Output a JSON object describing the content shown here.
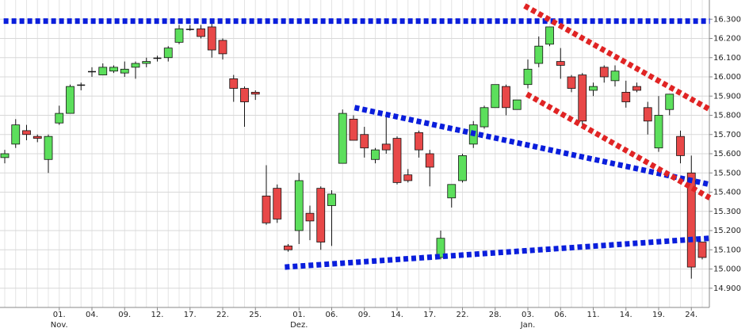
{
  "chart_data": {
    "type": "candlestick",
    "categories": [
      null,
      null,
      null,
      null,
      null,
      "01.",
      null,
      null,
      "04.",
      null,
      null,
      "09.",
      null,
      null,
      "12.",
      null,
      null,
      "17.",
      null,
      null,
      "22.",
      null,
      null,
      "25.",
      null,
      null,
      null,
      "01.",
      null,
      null,
      "06.",
      null,
      null,
      "09.",
      null,
      null,
      "14.",
      null,
      null,
      "17.",
      null,
      null,
      "22.",
      null,
      null,
      "28.",
      null,
      null,
      "03.",
      null,
      null,
      "06.",
      null,
      null,
      "11.",
      null,
      null,
      "14.",
      null,
      null,
      "19.",
      null,
      null,
      "24.",
      null
    ],
    "months": [
      null,
      null,
      null,
      null,
      null,
      "Nov.",
      null,
      null,
      null,
      null,
      null,
      null,
      null,
      null,
      null,
      null,
      null,
      null,
      null,
      null,
      null,
      null,
      null,
      null,
      null,
      null,
      null,
      "Dez.",
      null,
      null,
      null,
      null,
      null,
      null,
      null,
      null,
      null,
      null,
      null,
      null,
      null,
      null,
      null,
      null,
      null,
      null,
      null,
      null,
      "Jan.",
      null,
      null,
      null,
      null,
      null,
      null,
      null,
      null,
      null,
      null,
      null,
      null,
      null,
      null,
      null,
      null
    ],
    "open": [
      15.58,
      15.65,
      15.72,
      15.69,
      15.57,
      15.76,
      15.81,
      15.96,
      16.03,
      16.01,
      16.03,
      16.02,
      16.05,
      16.07,
      16.1,
      16.1,
      16.18,
      16.25,
      16.25,
      16.26,
      16.19,
      15.99,
      15.94,
      15.92,
      15.38,
      15.42,
      15.12,
      15.2,
      15.29,
      15.42,
      15.33,
      15.55,
      15.78,
      15.7,
      15.57,
      15.65,
      15.68,
      15.49,
      15.71,
      15.6,
      15.06,
      15.37,
      15.46,
      15.65,
      15.74,
      15.84,
      15.95,
      15.83,
      15.96,
      16.07,
      16.17,
      16.08,
      16.0,
      16.01,
      15.93,
      16.05,
      15.98,
      15.92,
      15.95,
      15.84,
      15.63,
      15.83,
      15.69,
      15.5,
      15.14
    ],
    "high": [
      15.62,
      15.78,
      15.75,
      15.7,
      15.7,
      15.85,
      15.96,
      15.97,
      16.05,
      16.07,
      16.06,
      16.08,
      16.08,
      16.1,
      16.11,
      16.16,
      16.27,
      16.27,
      16.27,
      16.28,
      16.2,
      16.01,
      15.95,
      15.93,
      15.54,
      15.44,
      15.13,
      15.5,
      15.33,
      15.43,
      15.41,
      15.83,
      15.8,
      15.74,
      15.63,
      15.79,
      15.69,
      15.52,
      15.72,
      15.62,
      15.2,
      15.44,
      15.6,
      15.77,
      15.85,
      15.96,
      15.96,
      15.88,
      16.09,
      16.21,
      16.26,
      16.15,
      16.01,
      16.02,
      15.97,
      16.06,
      16.06,
      15.98,
      15.97,
      15.87,
      15.9,
      15.91,
      15.72,
      15.59,
      15.14
    ],
    "low": [
      15.55,
      15.63,
      15.67,
      15.66,
      15.5,
      15.75,
      15.81,
      15.93,
      16.0,
      16.01,
      16.02,
      16.0,
      15.99,
      16.05,
      16.08,
      16.08,
      16.17,
      16.24,
      16.2,
      16.1,
      16.09,
      15.87,
      15.74,
      15.88,
      15.23,
      15.24,
      15.09,
      15.13,
      15.15,
      15.1,
      15.12,
      15.55,
      15.67,
      15.58,
      15.55,
      15.6,
      15.44,
      15.45,
      15.58,
      15.43,
      15.05,
      15.32,
      15.45,
      15.63,
      15.73,
      15.84,
      15.8,
      15.83,
      15.94,
      16.05,
      16.16,
      15.99,
      15.92,
      15.75,
      15.9,
      15.97,
      15.95,
      15.84,
      15.92,
      15.7,
      15.61,
      15.8,
      15.55,
      14.95,
      15.05
    ],
    "close": [
      15.6,
      15.75,
      15.7,
      15.68,
      15.69,
      15.81,
      15.95,
      15.96,
      16.03,
      16.05,
      16.05,
      16.04,
      16.07,
      16.08,
      16.1,
      16.15,
      16.25,
      16.25,
      16.21,
      16.14,
      16.12,
      15.94,
      15.87,
      15.91,
      15.24,
      15.26,
      15.1,
      15.46,
      15.25,
      15.14,
      15.39,
      15.81,
      15.67,
      15.63,
      15.62,
      15.62,
      15.45,
      15.46,
      15.62,
      15.53,
      15.16,
      15.44,
      15.59,
      15.75,
      15.84,
      15.96,
      15.84,
      15.88,
      16.04,
      16.16,
      16.26,
      16.06,
      15.94,
      15.77,
      15.95,
      16.0,
      16.03,
      15.87,
      15.93,
      15.77,
      15.8,
      15.91,
      15.59,
      15.01,
      15.06
    ],
    "up_color": "#5cdf5c",
    "down_color": "#e84848",
    "ylim": [
      14.8,
      16.4
    ],
    "yticks": [
      {
        "value": 14.9,
        "label": "14.900"
      },
      {
        "value": 15.0,
        "label": "15.000"
      },
      {
        "value": 15.1,
        "label": "15.100"
      },
      {
        "value": 15.2,
        "label": "15.200"
      },
      {
        "value": 15.3,
        "label": "15.300"
      },
      {
        "value": 15.4,
        "label": "15.400"
      },
      {
        "value": 15.5,
        "label": "15.500"
      },
      {
        "value": 15.6,
        "label": "15.600"
      },
      {
        "value": 15.7,
        "label": "15.700"
      },
      {
        "value": 15.8,
        "label": "15.800"
      },
      {
        "value": 15.9,
        "label": "15.900"
      },
      {
        "value": 16.0,
        "label": "16.000"
      },
      {
        "value": 16.1,
        "label": "16.100"
      },
      {
        "value": 16.2,
        "label": "16.200"
      },
      {
        "value": 16.3,
        "label": "16.300"
      }
    ],
    "grid": true,
    "trendlines": [
      {
        "color": "#0a1edc",
        "x": [
          -0.1,
          64.7
        ],
        "y": [
          16.29,
          16.29
        ]
      },
      {
        "color": "#0a1edc",
        "x": [
          32.1,
          64.7
        ],
        "y": [
          15.84,
          15.44
        ]
      },
      {
        "color": "#0a1edc",
        "x": [
          25.7,
          64.7
        ],
        "y": [
          15.01,
          15.16
        ]
      },
      {
        "color": "#e02424",
        "x": [
          47.7,
          64.7
        ],
        "y": [
          16.37,
          15.83
        ]
      },
      {
        "color": "#e02424",
        "x": [
          47.9,
          64.7
        ],
        "y": [
          15.91,
          15.37
        ]
      }
    ]
  }
}
